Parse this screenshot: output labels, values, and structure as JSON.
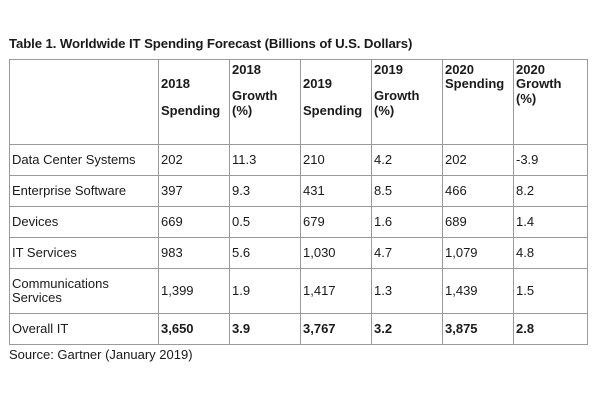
{
  "title": "Table 1. Worldwide IT Spending Forecast (Billions of U.S. Dollars)",
  "columns": [
    {
      "year": "2018",
      "label": "Spending"
    },
    {
      "year": "2018",
      "label": "Growth (%)"
    },
    {
      "year": "2019",
      "label": "Spending"
    },
    {
      "year": "2019",
      "label": "Growth (%)"
    },
    {
      "year": "2020",
      "label": "Spending"
    },
    {
      "year": "2020",
      "label": "Growth (%)"
    }
  ],
  "rows": [
    {
      "label": "Data Center Systems",
      "values": [
        "202",
        "11.3",
        "210",
        "4.2",
        "202",
        "-3.9"
      ]
    },
    {
      "label": "Enterprise Software",
      "values": [
        "397",
        "9.3",
        "431",
        "8.5",
        "466",
        "8.2"
      ]
    },
    {
      "label": "Devices",
      "values": [
        "669",
        "0.5",
        "679",
        "1.6",
        "689",
        "1.4"
      ]
    },
    {
      "label": "IT Services",
      "values": [
        "983",
        "5.6",
        "1,030",
        "4.7",
        "1,079",
        "4.8"
      ]
    },
    {
      "label": "Communications Services",
      "values": [
        "1,399",
        "1.9",
        "1,417",
        "1.3",
        "1,439",
        "1.5"
      ]
    },
    {
      "label": "Overall IT",
      "values": [
        "3,650",
        "3.9",
        "3,767",
        "3.2",
        "3,875",
        "2.8"
      ]
    }
  ],
  "source": "Source: Gartner (January 2019)"
}
